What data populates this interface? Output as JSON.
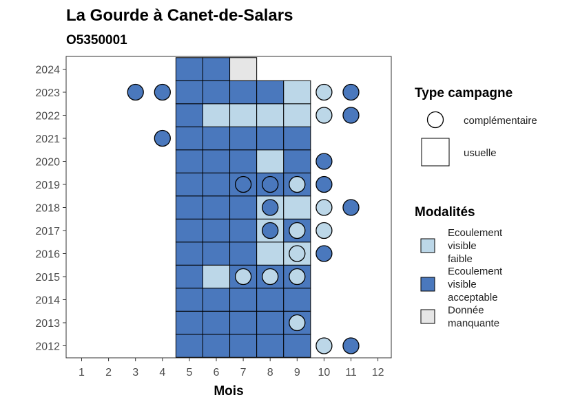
{
  "chart_data": {
    "type": "heatmap",
    "title": "La Gourde à Canet-de-Salars",
    "subtitle": "O5350001",
    "xlabel": "Mois",
    "ylabel": "",
    "x_ticks": [
      "1",
      "2",
      "3",
      "4",
      "5",
      "6",
      "7",
      "8",
      "9",
      "10",
      "11",
      "12"
    ],
    "y_ticks": [
      "2012",
      "2013",
      "2014",
      "2015",
      "2016",
      "2017",
      "2018",
      "2019",
      "2020",
      "2021",
      "2022",
      "2023",
      "2024"
    ],
    "xlim": [
      0.5,
      12.5
    ],
    "ylim": [
      2011.5,
      2024.5
    ],
    "grid": false,
    "legend_position": "right",
    "modalite_colors": {
      "faible": "#bcd7e8",
      "acceptable": "#4a78bd",
      "manquante": "#e6e6e6"
    },
    "tiles": [
      {
        "year": 2012,
        "month": 5,
        "modalite": "acceptable"
      },
      {
        "year": 2012,
        "month": 6,
        "modalite": "acceptable"
      },
      {
        "year": 2012,
        "month": 7,
        "modalite": "acceptable"
      },
      {
        "year": 2012,
        "month": 8,
        "modalite": "acceptable"
      },
      {
        "year": 2012,
        "month": 9,
        "modalite": "acceptable"
      },
      {
        "year": 2013,
        "month": 5,
        "modalite": "acceptable"
      },
      {
        "year": 2013,
        "month": 6,
        "modalite": "acceptable"
      },
      {
        "year": 2013,
        "month": 7,
        "modalite": "acceptable"
      },
      {
        "year": 2013,
        "month": 8,
        "modalite": "acceptable"
      },
      {
        "year": 2013,
        "month": 9,
        "modalite": "acceptable"
      },
      {
        "year": 2014,
        "month": 5,
        "modalite": "acceptable"
      },
      {
        "year": 2014,
        "month": 6,
        "modalite": "acceptable"
      },
      {
        "year": 2014,
        "month": 7,
        "modalite": "acceptable"
      },
      {
        "year": 2014,
        "month": 8,
        "modalite": "acceptable"
      },
      {
        "year": 2014,
        "month": 9,
        "modalite": "acceptable"
      },
      {
        "year": 2015,
        "month": 5,
        "modalite": "acceptable"
      },
      {
        "year": 2015,
        "month": 6,
        "modalite": "faible"
      },
      {
        "year": 2015,
        "month": 7,
        "modalite": "acceptable"
      },
      {
        "year": 2015,
        "month": 8,
        "modalite": "acceptable"
      },
      {
        "year": 2015,
        "month": 9,
        "modalite": "acceptable"
      },
      {
        "year": 2016,
        "month": 5,
        "modalite": "acceptable"
      },
      {
        "year": 2016,
        "month": 6,
        "modalite": "acceptable"
      },
      {
        "year": 2016,
        "month": 7,
        "modalite": "acceptable"
      },
      {
        "year": 2016,
        "month": 8,
        "modalite": "faible"
      },
      {
        "year": 2016,
        "month": 9,
        "modalite": "faible"
      },
      {
        "year": 2017,
        "month": 5,
        "modalite": "acceptable"
      },
      {
        "year": 2017,
        "month": 6,
        "modalite": "acceptable"
      },
      {
        "year": 2017,
        "month": 7,
        "modalite": "acceptable"
      },
      {
        "year": 2017,
        "month": 8,
        "modalite": "faible"
      },
      {
        "year": 2017,
        "month": 9,
        "modalite": "acceptable"
      },
      {
        "year": 2018,
        "month": 5,
        "modalite": "acceptable"
      },
      {
        "year": 2018,
        "month": 6,
        "modalite": "acceptable"
      },
      {
        "year": 2018,
        "month": 7,
        "modalite": "acceptable"
      },
      {
        "year": 2018,
        "month": 8,
        "modalite": "faible"
      },
      {
        "year": 2018,
        "month": 9,
        "modalite": "faible"
      },
      {
        "year": 2019,
        "month": 5,
        "modalite": "acceptable"
      },
      {
        "year": 2019,
        "month": 6,
        "modalite": "acceptable"
      },
      {
        "year": 2019,
        "month": 7,
        "modalite": "acceptable"
      },
      {
        "year": 2019,
        "month": 8,
        "modalite": "acceptable"
      },
      {
        "year": 2019,
        "month": 9,
        "modalite": "acceptable"
      },
      {
        "year": 2020,
        "month": 5,
        "modalite": "acceptable"
      },
      {
        "year": 2020,
        "month": 6,
        "modalite": "acceptable"
      },
      {
        "year": 2020,
        "month": 7,
        "modalite": "acceptable"
      },
      {
        "year": 2020,
        "month": 8,
        "modalite": "faible"
      },
      {
        "year": 2020,
        "month": 9,
        "modalite": "acceptable"
      },
      {
        "year": 2021,
        "month": 5,
        "modalite": "acceptable"
      },
      {
        "year": 2021,
        "month": 6,
        "modalite": "acceptable"
      },
      {
        "year": 2021,
        "month": 7,
        "modalite": "acceptable"
      },
      {
        "year": 2021,
        "month": 8,
        "modalite": "acceptable"
      },
      {
        "year": 2021,
        "month": 9,
        "modalite": "acceptable"
      },
      {
        "year": 2022,
        "month": 5,
        "modalite": "acceptable"
      },
      {
        "year": 2022,
        "month": 6,
        "modalite": "faible"
      },
      {
        "year": 2022,
        "month": 7,
        "modalite": "faible"
      },
      {
        "year": 2022,
        "month": 8,
        "modalite": "faible"
      },
      {
        "year": 2022,
        "month": 9,
        "modalite": "faible"
      },
      {
        "year": 2023,
        "month": 5,
        "modalite": "acceptable"
      },
      {
        "year": 2023,
        "month": 6,
        "modalite": "acceptable"
      },
      {
        "year": 2023,
        "month": 7,
        "modalite": "acceptable"
      },
      {
        "year": 2023,
        "month": 8,
        "modalite": "acceptable"
      },
      {
        "year": 2023,
        "month": 9,
        "modalite": "faible"
      },
      {
        "year": 2024,
        "month": 5,
        "modalite": "acceptable"
      },
      {
        "year": 2024,
        "month": 6,
        "modalite": "acceptable"
      },
      {
        "year": 2024,
        "month": 7,
        "modalite": "manquante"
      }
    ],
    "points": [
      {
        "year": 2012,
        "month": 10,
        "modalite": "faible"
      },
      {
        "year": 2012,
        "month": 11,
        "modalite": "acceptable"
      },
      {
        "year": 2013,
        "month": 9,
        "modalite": "faible"
      },
      {
        "year": 2015,
        "month": 7,
        "modalite": "faible"
      },
      {
        "year": 2015,
        "month": 8,
        "modalite": "faible"
      },
      {
        "year": 2015,
        "month": 9,
        "modalite": "faible"
      },
      {
        "year": 2016,
        "month": 9,
        "modalite": "faible"
      },
      {
        "year": 2016,
        "month": 10,
        "modalite": "acceptable"
      },
      {
        "year": 2017,
        "month": 8,
        "modalite": "acceptable"
      },
      {
        "year": 2017,
        "month": 9,
        "modalite": "faible"
      },
      {
        "year": 2017,
        "month": 10,
        "modalite": "faible"
      },
      {
        "year": 2018,
        "month": 8,
        "modalite": "acceptable"
      },
      {
        "year": 2018,
        "month": 10,
        "modalite": "faible"
      },
      {
        "year": 2018,
        "month": 11,
        "modalite": "acceptable"
      },
      {
        "year": 2019,
        "month": 7,
        "modalite": "acceptable"
      },
      {
        "year": 2019,
        "month": 8,
        "modalite": "acceptable"
      },
      {
        "year": 2019,
        "month": 9,
        "modalite": "faible"
      },
      {
        "year": 2019,
        "month": 10,
        "modalite": "acceptable"
      },
      {
        "year": 2020,
        "month": 10,
        "modalite": "acceptable"
      },
      {
        "year": 2021,
        "month": 4,
        "modalite": "acceptable"
      },
      {
        "year": 2022,
        "month": 10,
        "modalite": "faible"
      },
      {
        "year": 2022,
        "month": 11,
        "modalite": "acceptable"
      },
      {
        "year": 2023,
        "month": 3,
        "modalite": "acceptable"
      },
      {
        "year": 2023,
        "month": 4,
        "modalite": "acceptable"
      },
      {
        "year": 2023,
        "month": 10,
        "modalite": "faible"
      },
      {
        "year": 2023,
        "month": 11,
        "modalite": "acceptable"
      }
    ],
    "legend": {
      "type_title": "Type campagne",
      "type_items": [
        {
          "key": "complementaire",
          "shape": "circle",
          "label": "complémentaire"
        },
        {
          "key": "usuelle",
          "shape": "square",
          "label": "usuelle"
        }
      ],
      "modalite_title": "Modalités",
      "modalite_items": [
        {
          "key": "faible",
          "lines": [
            "Ecoulement",
            "visible",
            "faible"
          ]
        },
        {
          "key": "acceptable",
          "lines": [
            "Ecoulement",
            "visible",
            "acceptable"
          ]
        },
        {
          "key": "manquante",
          "lines": [
            "Donnée",
            "manquante"
          ]
        }
      ]
    }
  }
}
